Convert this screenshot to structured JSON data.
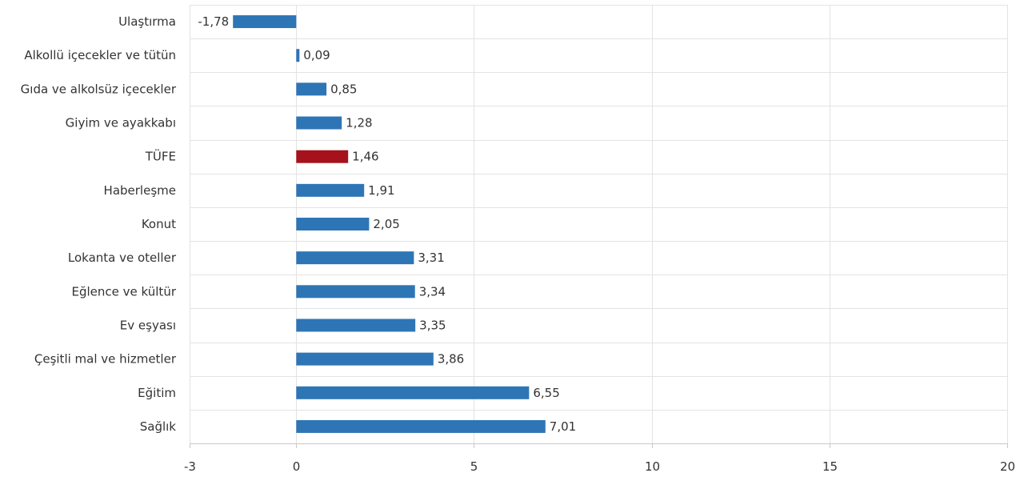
{
  "chart_data": {
    "type": "bar",
    "orientation": "horizontal",
    "title": "",
    "xlabel": "",
    "ylabel": "",
    "xlim": [
      -3,
      20
    ],
    "xticks": [
      -3,
      0,
      5,
      10,
      15,
      20
    ],
    "grid": true,
    "legend": "none",
    "categories": [
      "Ulaştırma",
      "Alkollü içecekler ve tütün",
      "Gıda ve alkolsüz içecekler",
      "Giyim ve ayakkabı",
      "TÜFE",
      "Haberleşme",
      "Konut",
      "Lokanta ve oteller",
      "Eğlence ve kültür",
      "Ev eşyası",
      "Çeşitli mal ve hizmetler",
      "Eğitim",
      "Sağlık"
    ],
    "values": [
      -1.78,
      0.09,
      0.85,
      1.28,
      1.46,
      1.91,
      2.05,
      3.31,
      3.34,
      3.35,
      3.86,
      6.55,
      7.01
    ],
    "value_labels": [
      "-1,78",
      "0,09",
      "0,85",
      "1,28",
      "1,46",
      "1,91",
      "2,05",
      "3,31",
      "3,34",
      "3,35",
      "3,86",
      "6,55",
      "7,01"
    ],
    "colors": {
      "default": "#2e75b6",
      "highlight": "#a5121b",
      "highlight_category": "TÜFE"
    }
  }
}
